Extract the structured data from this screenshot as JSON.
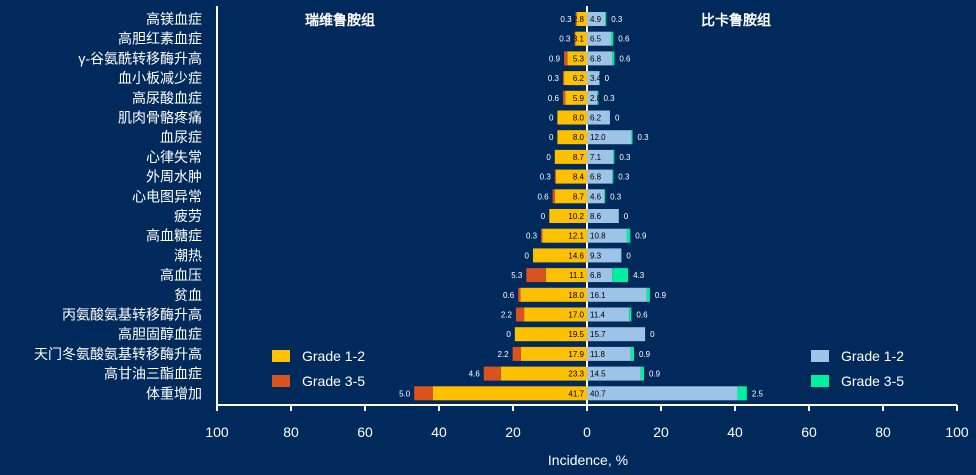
{
  "chart_data": {
    "type": "bar",
    "orientation": "horizontal",
    "layout": "butterfly",
    "xlabel": "Incidence, %",
    "xlim": [
      -100,
      100
    ],
    "x_ticks": [
      -100,
      -80,
      -60,
      -40,
      -20,
      0,
      20,
      40,
      60,
      80,
      100
    ],
    "x_tick_labels": [
      "100",
      "80",
      "60",
      "40",
      "20",
      "0",
      "20",
      "40",
      "60",
      "80",
      "100"
    ],
    "categories": [
      "高镁血症",
      "高胆红素血症",
      "γ-谷氨酰转移酶升高",
      "血小板减少症",
      "高尿酸血症",
      "肌肉骨骼疼痛",
      "血尿症",
      "心律失常",
      "外周水肿",
      "心电图异常",
      "疲劳",
      "高血糖症",
      "潮热",
      "高血压",
      "贫血",
      "丙氨酸氨基转移酶升高",
      "高胆固醇血症",
      "天门冬氨酸氨基转移酶升高",
      "高甘油三酯血症",
      "体重增加"
    ],
    "left_panel": {
      "title": "瑞维鲁胺组",
      "series": [
        {
          "name": "Grade 1-2",
          "color": "#ffc000",
          "values": [
            2.8,
            3.1,
            5.3,
            6.2,
            5.9,
            8.0,
            8.0,
            8.7,
            8.4,
            8.7,
            10.2,
            12.1,
            14.6,
            11.1,
            18.0,
            17.0,
            19.5,
            17.9,
            23.3,
            41.7
          ]
        },
        {
          "name": "Grade 3-5",
          "color": "#d9531e",
          "values": [
            0.3,
            0.3,
            0.9,
            0.3,
            0.6,
            0,
            0,
            0,
            0.3,
            0.6,
            0,
            0.3,
            0,
            5.3,
            0.6,
            2.2,
            0,
            2.2,
            4.6,
            5.0
          ]
        }
      ],
      "grade12_labels": [
        "2.8",
        "3.1",
        "5.3",
        "6.2",
        "5.9",
        "8.0",
        "8.0",
        "8.7",
        "8.4",
        "8.7",
        "10.2",
        "12.1",
        "14.6",
        "11.1",
        "18.0",
        "17.0",
        "19.5",
        "17.9",
        "23.3",
        "41.7"
      ],
      "grade35_labels": [
        "0.3",
        "0.3",
        "0.9",
        "0.3",
        "0.6",
        "0",
        "0",
        "0",
        "0.3",
        "0.6",
        "0",
        "0.3",
        "0",
        "5.3",
        "0.6",
        "2.2",
        "0",
        "2.2",
        "4.6",
        "5.0"
      ],
      "legend": [
        "Grade 1-2",
        "Grade 3-5"
      ]
    },
    "right_panel": {
      "title": "比卡鲁胺组",
      "series": [
        {
          "name": "Grade 1-2",
          "color": "#9dc3e6",
          "values": [
            4.9,
            6.5,
            6.8,
            3.4,
            2.8,
            6.2,
            12.0,
            7.1,
            6.8,
            4.6,
            8.6,
            10.8,
            9.3,
            6.8,
            16.1,
            11.4,
            15.7,
            11.8,
            14.5,
            40.7
          ]
        },
        {
          "name": "Grade 3-5",
          "color": "#00f0a0",
          "values": [
            0.3,
            0.6,
            0.6,
            0,
            0.3,
            0,
            0.3,
            0.3,
            0.3,
            0.3,
            0,
            0.9,
            0,
            4.3,
            0.9,
            0.6,
            0,
            0.9,
            0.9,
            2.5
          ]
        }
      ],
      "grade12_labels": [
        "4.9",
        "6.5",
        "6.8",
        "3.4",
        "2.8",
        "6.2",
        "12.0",
        "7.1",
        "6.8",
        "4.6",
        "8.6",
        "10.8",
        "9.3",
        "6.8",
        "16.1",
        "11.4",
        "15.7",
        "11.8",
        "14.5",
        "40.7"
      ],
      "grade35_labels": [
        "0.3",
        "0.6",
        "0.6",
        "0",
        "0.3",
        "0",
        "0.3",
        "0.3",
        "0.3",
        "0.3",
        "0",
        "0.9",
        "0",
        "4.3",
        "0.9",
        "0.6",
        "0",
        "0.9",
        "0.9",
        "2.5"
      ],
      "legend": [
        "Grade 1-2",
        "Grade 3-5"
      ]
    }
  }
}
